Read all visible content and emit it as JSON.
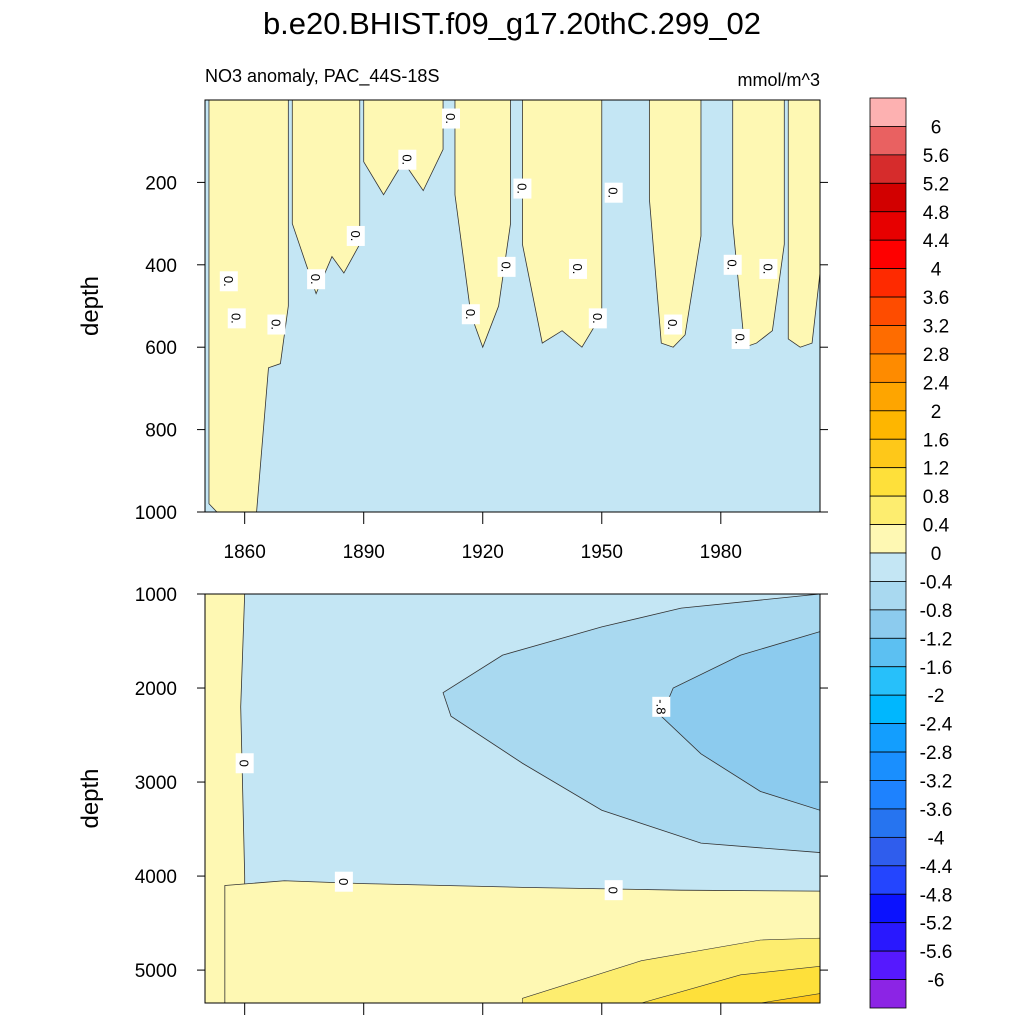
{
  "chart_data": {
    "type": "contour",
    "title": "b.e20.BHIST.f09_g17.20thC.299_02",
    "subtitle_left": "NO3 anomaly, PAC_44S-18S",
    "subtitle_right": "mmol/m^3",
    "panels": [
      {
        "name": "upper",
        "ylabel": "depth",
        "xlim": [
          1850,
          2005
        ],
        "ylim": [
          0,
          1000
        ],
        "y_inverted": true,
        "yticks": [
          "200",
          "400",
          "600",
          "800",
          "1000"
        ],
        "ytick_values": [
          200,
          400,
          600,
          800,
          1000
        ],
        "xticks": [
          "1860",
          "1890",
          "1920",
          "1950",
          "1980"
        ],
        "xtick_values": [
          1860,
          1890,
          1920,
          1950,
          1980
        ],
        "contour_labels": [
          "0.",
          "0.",
          "0.",
          "0.",
          "0.",
          "0.",
          "0.",
          "0.",
          "0.",
          "0.",
          "0.",
          "0.",
          "0.",
          "0.",
          "0.",
          "0.",
          "0."
        ],
        "positive_bands": [
          {
            "x": [
              1851,
              1853,
              1853,
              1858,
              1863,
              1866,
              1869,
              1871
            ],
            "depth_bottom": [
              980,
              1000,
              1000,
              1000,
              1000,
              650,
              640,
              500
            ]
          },
          {
            "x": [
              1872,
              1878,
              1882,
              1885,
              1889
            ],
            "depth_bottom": [
              300,
              470,
              380,
              420,
              350
            ]
          },
          {
            "x": [
              1890,
              1895,
              1900,
              1905,
              1910
            ],
            "depth_bottom": [
              150,
              230,
              150,
              220,
              120
            ]
          },
          {
            "x": [
              1913,
              1917,
              1920,
              1924,
              1927
            ],
            "depth_bottom": [
              230,
              520,
              600,
              500,
              300
            ]
          },
          {
            "x": [
              1930,
              1935,
              1940,
              1945,
              1950
            ],
            "depth_bottom": [
              350,
              590,
              560,
              600,
              520
            ]
          },
          {
            "x": [
              1962,
              1965,
              1968,
              1971,
              1975
            ],
            "depth_bottom": [
              240,
              590,
              600,
              570,
              330
            ]
          },
          {
            "x": [
              1983,
              1986,
              1989,
              1993,
              1996
            ],
            "depth_bottom": [
              300,
              600,
              590,
              560,
              350
            ]
          },
          {
            "x": [
              1997,
              2000,
              2003,
              2005
            ],
            "depth_bottom": [
              580,
              600,
              590,
              420
            ]
          }
        ]
      },
      {
        "name": "lower",
        "ylabel": "depth",
        "xlim": [
          1850,
          2005
        ],
        "ylim": [
          1000,
          5350
        ],
        "y_inverted": true,
        "yticks": [
          "1000",
          "2000",
          "3000",
          "4000",
          "5000"
        ],
        "ytick_values": [
          1000,
          2000,
          3000,
          4000,
          5000
        ],
        "contour_labels": [
          "0",
          "0",
          "0",
          "-.8"
        ],
        "regions": [
          {
            "level": 0.2,
            "description": "positive, surface columns 1850-1860 and deep water below ~4000"
          },
          {
            "level": 0.6,
            "description": "deep increase below ~4700 after 1960"
          },
          {
            "level": 1.0,
            "description": "deep increase below ~5000 after 1980"
          },
          {
            "level": -0.2,
            "description": "background negative anomaly 1000-4000"
          },
          {
            "level": -0.6,
            "description": "core 1500-3800 after 1910"
          },
          {
            "level": -1.0,
            "description": "core 1400-3500 after 1965"
          }
        ]
      }
    ],
    "colorbar": {
      "labels": [
        "6",
        "5.6",
        "5.2",
        "4.8",
        "4.4",
        "4",
        "3.6",
        "3.2",
        "2.8",
        "2.4",
        "2",
        "1.6",
        "1.2",
        "0.8",
        "0.4",
        "0",
        "-0.4",
        "-0.8",
        "-1.2",
        "-1.6",
        "-2",
        "-2.4",
        "-2.8",
        "-3.2",
        "-3.6",
        "-4",
        "-4.4",
        "-4.8",
        "-5.2",
        "-5.6",
        "-6"
      ],
      "colors": [
        "#fdb1b1",
        "#e96161",
        "#d62c2c",
        "#d20000",
        "#e70000",
        "#fe0000",
        "#fe2a00",
        "#fe4c00",
        "#fe6c00",
        "#fe8b00",
        "#fea500",
        "#feb600",
        "#fec819",
        "#fee03a",
        "#fded6f",
        "#fef8b3",
        "#c4e6f4",
        "#a9d9f0",
        "#8ccbee",
        "#5cc0f2",
        "#27c0fa",
        "#00b7fe",
        "#139efe",
        "#1a8ffe",
        "#1e82fe",
        "#2674f0",
        "#2f5ded",
        "#2445fe",
        "#0b12fe",
        "#2918fe",
        "#5619fe",
        "#8c24e5"
      ]
    }
  }
}
